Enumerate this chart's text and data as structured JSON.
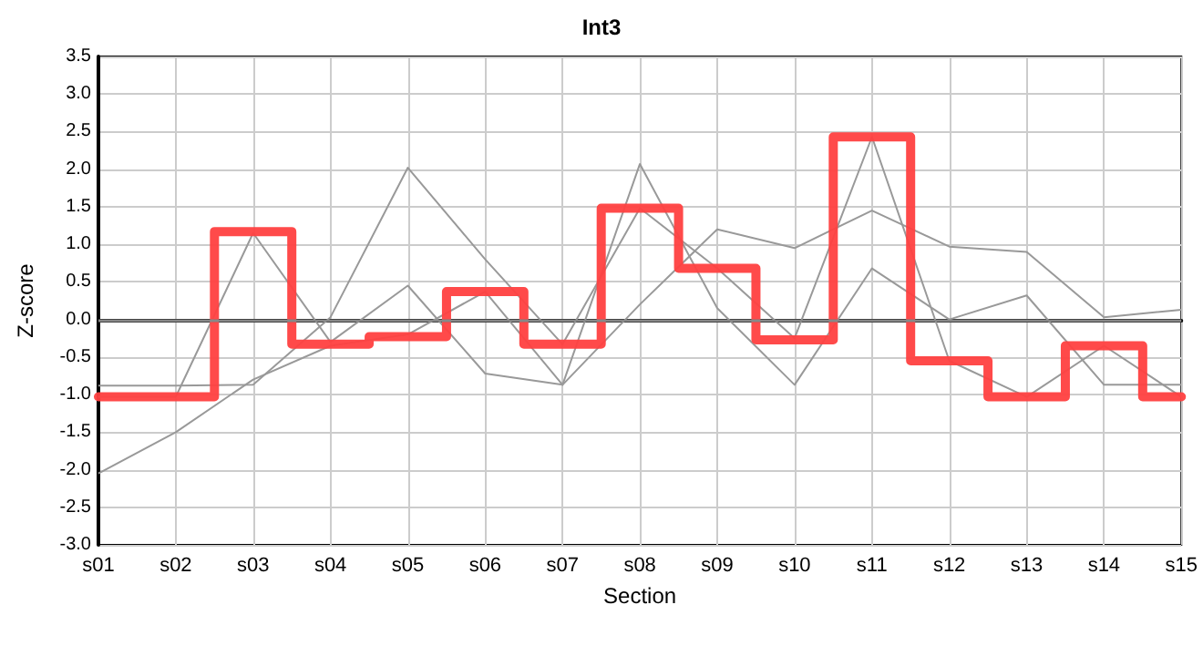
{
  "chart_data": {
    "type": "line",
    "title": "Int3",
    "xlabel": "Section",
    "ylabel": "Z-score",
    "categories": [
      "s01",
      "s02",
      "s03",
      "s04",
      "s05",
      "s06",
      "s07",
      "s08",
      "s09",
      "s10",
      "s11",
      "s12",
      "s13",
      "s14",
      "s15"
    ],
    "series": [
      {
        "color": "#999999",
        "values": [
          -0.88,
          -0.88,
          -0.87,
          0.03,
          2.02,
          0.8,
          -0.33,
          1.48,
          0.68,
          -0.25,
          2.43,
          -0.55,
          -1.03,
          -0.35,
          -1.03
        ]
      },
      {
        "color": "#999999",
        "values": [
          -1.03,
          -1.03,
          1.15,
          -0.3,
          0.45,
          -0.72,
          -0.87,
          2.07,
          0.15,
          -0.87,
          0.68,
          0.0,
          0.32,
          -0.87,
          -0.87
        ]
      },
      {
        "color": "#999999",
        "values": [
          -2.05,
          -1.5,
          -0.8,
          -0.35,
          -0.2,
          0.37,
          -0.87,
          0.2,
          1.2,
          0.95,
          1.45,
          0.97,
          0.9,
          0.03,
          0.13
        ]
      },
      {
        "type": "step",
        "color": "#ff4040",
        "values": [
          -1.03,
          -1.03,
          1.17,
          -0.33,
          -0.23,
          0.37,
          -0.33,
          1.48,
          0.68,
          -0.27,
          2.43,
          -0.55,
          -1.03,
          -0.35,
          -1.03
        ]
      }
    ],
    "ylim": [
      -3,
      3.5
    ],
    "yticks": [
      {
        "value": -3,
        "label": "-3.0"
      },
      -2.5,
      {
        "value": -2,
        "label": "-2.0"
      },
      -1.5,
      {
        "value": -1,
        "label": "-1.0"
      },
      -0.5,
      {
        "value": 0,
        "label": "0.0"
      },
      0.5,
      {
        "value": 1,
        "label": "1.0"
      },
      1.5,
      {
        "value": 2,
        "label": "2.0"
      },
      2.5,
      {
        "value": 3,
        "label": "3.0"
      },
      3.5
    ],
    "ref_lines": [
      {
        "axis": "y",
        "value": 0,
        "color": "#888888"
      }
    ],
    "grid": true,
    "marker": "none"
  }
}
